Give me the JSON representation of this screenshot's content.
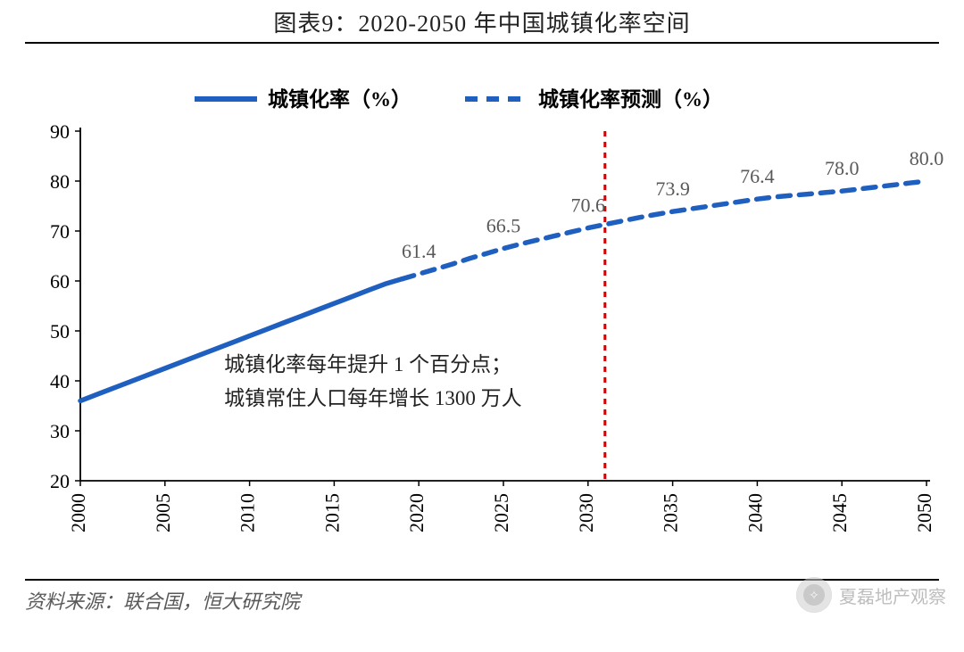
{
  "title": "图表9：2020-2050 年中国城镇化率空间",
  "source": "资料来源：联合国，恒大研究院",
  "watermark": "夏磊地产观察",
  "chart": {
    "type": "line",
    "background_color": "#ffffff",
    "axis_color": "#000000",
    "ylim": [
      20,
      90
    ],
    "ytick_step": 10,
    "yticks": [
      20,
      30,
      40,
      50,
      60,
      70,
      80,
      90
    ],
    "xticks": [
      2000,
      2005,
      2010,
      2015,
      2020,
      2025,
      2030,
      2035,
      2040,
      2045,
      2050
    ],
    "xlim": [
      2000,
      2050
    ],
    "tick_fontsize": 22,
    "tick_color": "#000000",
    "xlabel_rotation": -90,
    "marker_line": {
      "x": 2031,
      "color": "#d90000",
      "dash": "6,6",
      "width": 3
    },
    "legend": {
      "items": [
        {
          "key": "actual",
          "label": "城镇化率（%）",
          "style": "solid",
          "color": "#1f5fbf"
        },
        {
          "key": "forecast",
          "label": "城镇化率预测（%）",
          "style": "dashed",
          "color": "#1f5fbf"
        }
      ],
      "fontsize": 23,
      "weight": "bold",
      "line_width": 6,
      "dash": "14,10"
    },
    "series": {
      "actual": {
        "color": "#1f5fbf",
        "line_width": 5.5,
        "style": "solid",
        "points": [
          [
            2000,
            36.0
          ],
          [
            2001,
            37.3
          ],
          [
            2002,
            38.6
          ],
          [
            2003,
            39.9
          ],
          [
            2004,
            41.2
          ],
          [
            2005,
            42.5
          ],
          [
            2006,
            43.8
          ],
          [
            2007,
            45.1
          ],
          [
            2008,
            46.4
          ],
          [
            2009,
            47.7
          ],
          [
            2010,
            49.0
          ],
          [
            2011,
            50.3
          ],
          [
            2012,
            51.6
          ],
          [
            2013,
            52.9
          ],
          [
            2014,
            54.2
          ],
          [
            2015,
            55.5
          ],
          [
            2016,
            56.8
          ],
          [
            2017,
            58.1
          ],
          [
            2018,
            59.4
          ],
          [
            2019,
            60.4
          ]
        ]
      },
      "forecast": {
        "color": "#1f5fbf",
        "line_width": 5.5,
        "style": "dashed",
        "dash": "14,10",
        "points": [
          [
            2019,
            60.4
          ],
          [
            2020,
            61.4
          ],
          [
            2021,
            62.4
          ],
          [
            2022,
            63.4
          ],
          [
            2023,
            64.5
          ],
          [
            2024,
            65.5
          ],
          [
            2025,
            66.5
          ],
          [
            2026,
            67.4
          ],
          [
            2027,
            68.2
          ],
          [
            2028,
            69.0
          ],
          [
            2029,
            69.8
          ],
          [
            2030,
            70.6
          ],
          [
            2031,
            71.3
          ],
          [
            2032,
            72.0
          ],
          [
            2033,
            72.7
          ],
          [
            2034,
            73.3
          ],
          [
            2035,
            73.9
          ],
          [
            2036,
            74.4
          ],
          [
            2037,
            74.9
          ],
          [
            2038,
            75.4
          ],
          [
            2039,
            75.9
          ],
          [
            2040,
            76.4
          ],
          [
            2041,
            76.8
          ],
          [
            2042,
            77.1
          ],
          [
            2043,
            77.4
          ],
          [
            2044,
            77.7
          ],
          [
            2045,
            78.0
          ],
          [
            2046,
            78.4
          ],
          [
            2047,
            78.8
          ],
          [
            2048,
            79.2
          ],
          [
            2049,
            79.6
          ],
          [
            2050,
            80.0
          ]
        ]
      }
    },
    "data_labels": [
      {
        "x": 2020,
        "y": 61.4,
        "text": "61.4"
      },
      {
        "x": 2025,
        "y": 66.5,
        "text": "66.5"
      },
      {
        "x": 2030,
        "y": 70.6,
        "text": "70.6"
      },
      {
        "x": 2035,
        "y": 73.9,
        "text": "73.9"
      },
      {
        "x": 2040,
        "y": 76.4,
        "text": "76.4"
      },
      {
        "x": 2045,
        "y": 78.0,
        "text": "78.0"
      },
      {
        "x": 2050,
        "y": 80.0,
        "text": "80.0"
      }
    ],
    "label_fontsize": 22,
    "label_color": "#595959",
    "annotation": {
      "lines": [
        "城镇化率每年提升 1 个百分点；",
        "城镇常住人口每年增长 1300 万人"
      ],
      "fontsize": 23,
      "color": "#222222",
      "x": 2008.5,
      "y_top": 42
    }
  }
}
